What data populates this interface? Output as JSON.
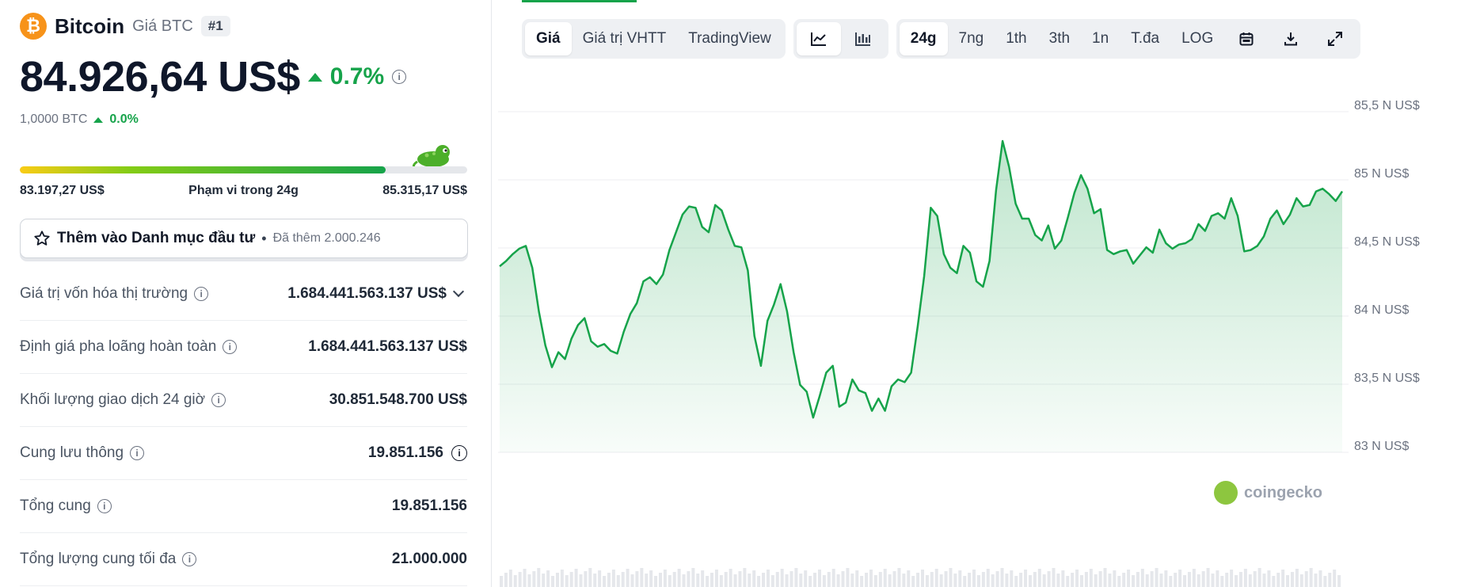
{
  "coin": {
    "logo_symbol": "₿",
    "name": "Bitcoin",
    "subtitle": "Giá BTC",
    "rank": "#1",
    "price": "84.926,64 US$",
    "change_pct": "0.7%",
    "btc_value": "1,0000 BTC",
    "btc_change_pct": "0.0%"
  },
  "range": {
    "low": "83.197,27 US$",
    "label": "Phạm vi trong 24g",
    "high": "85.315,17 US$",
    "position_fraction": 0.817
  },
  "watchlist": {
    "label": "Thêm vào Danh mục đầu tư",
    "separator": "•",
    "count_text": "Đã thêm 2.000.246"
  },
  "stats": [
    {
      "label": "Giá trị vốn hóa thị trường",
      "value": "1.684.441.563.137 US$",
      "trailing": "chevron"
    },
    {
      "label": "Định giá pha loãng hoàn toàn",
      "value": "1.684.441.563.137 US$",
      "trailing": ""
    },
    {
      "label": "Khối lượng giao dịch 24 giờ",
      "value": "30.851.548.700 US$",
      "trailing": ""
    },
    {
      "label": "Cung lưu thông",
      "value": "19.851.156",
      "trailing": "info"
    },
    {
      "label": "Tổng cung",
      "value": "19.851.156",
      "trailing": ""
    },
    {
      "label": "Tổng lượng cung tối đa",
      "value": "21.000.000",
      "trailing": ""
    }
  ],
  "toolbar": {
    "view_tabs": [
      "Giá",
      "Giá trị VHTT",
      "TradingView"
    ],
    "active_view": "Giá",
    "chart_types": [
      "line-chart-icon",
      "candlestick-icon"
    ],
    "ranges": [
      "24g",
      "7ng",
      "1th",
      "3th",
      "1n",
      "T.đa",
      "LOG"
    ],
    "active_range": "24g",
    "tools": [
      "calendar-icon",
      "download-icon",
      "expand-icon"
    ]
  },
  "chart_data": {
    "type": "area",
    "y_ticks": [
      "85,5 N US$",
      "85 N US$",
      "84,5 N US$",
      "84 N US$",
      "83,5 N US$",
      "83 N US$"
    ],
    "ylim": [
      83000,
      85500
    ],
    "watermark": "coingecko",
    "color": "#16a34a",
    "values": [
      84330,
      84370,
      84420,
      84460,
      84480,
      84320,
      84000,
      83750,
      83590,
      83700,
      83650,
      83800,
      83900,
      83950,
      83780,
      83740,
      83760,
      83710,
      83690,
      83850,
      83980,
      84060,
      84220,
      84250,
      84200,
      84270,
      84450,
      84580,
      84710,
      84770,
      84760,
      84620,
      84580,
      84780,
      84740,
      84600,
      84480,
      84470,
      84300,
      83820,
      83600,
      83930,
      84050,
      84200,
      84000,
      83700,
      83460,
      83410,
      83220,
      83380,
      83550,
      83600,
      83300,
      83330,
      83500,
      83420,
      83400,
      83270,
      83360,
      83270,
      83450,
      83500,
      83480,
      83550,
      83890,
      84260,
      84760,
      84700,
      84420,
      84320,
      84280,
      84480,
      84430,
      84220,
      84180,
      84370,
      84890,
      85250,
      85060,
      84790,
      84680,
      84680,
      84560,
      84520,
      84630,
      84460,
      84520,
      84690,
      84870,
      85000,
      84900,
      84720,
      84750,
      84450,
      84420,
      84440,
      84450,
      84350,
      84410,
      84470,
      84430,
      84600,
      84500,
      84460,
      84490,
      84500,
      84530,
      84640,
      84590,
      84700,
      84720,
      84680,
      84830,
      84700,
      84440,
      84450,
      84480,
      84550,
      84680,
      84740,
      84640,
      84710,
      84830,
      84770,
      84780,
      84880,
      84900,
      84860,
      84810,
      84880
    ]
  }
}
